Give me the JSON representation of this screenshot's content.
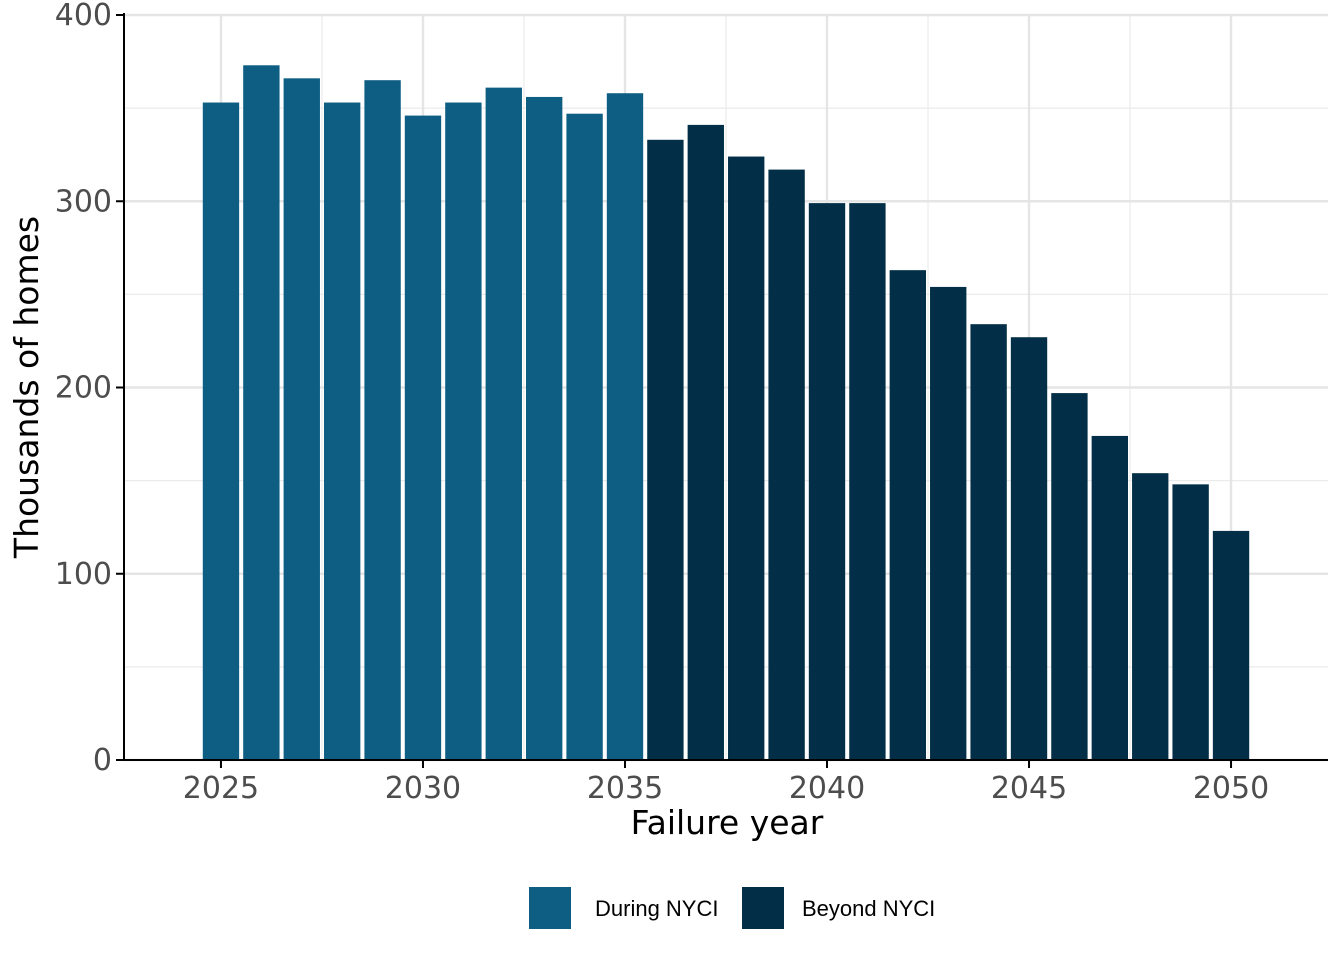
{
  "chart_data": {
    "type": "bar",
    "title": "",
    "xlabel": "Failure year",
    "ylabel": "Thousands of homes",
    "ylim": [
      0,
      400
    ],
    "xlim": [
      2022.6,
      2052.4
    ],
    "y_ticks": [
      0,
      100,
      200,
      300,
      400
    ],
    "y_tick_labels": [
      "0",
      "100",
      "200",
      "300",
      "400"
    ],
    "x_ticks": [
      2025,
      2030,
      2035,
      2040,
      2045,
      2050
    ],
    "x_tick_labels": [
      "2025",
      "2030",
      "2035",
      "2040",
      "2045",
      "2050"
    ],
    "grid": true,
    "legend_position": "bottom",
    "categories": [
      2025,
      2026,
      2027,
      2028,
      2029,
      2030,
      2031,
      2032,
      2033,
      2034,
      2035,
      2036,
      2037,
      2038,
      2039,
      2040,
      2041,
      2042,
      2043,
      2044,
      2045,
      2046,
      2047,
      2048,
      2049,
      2050
    ],
    "series": [
      {
        "name": "During NYCI",
        "color": "#0d5e82",
        "x": [
          2025,
          2026,
          2027,
          2028,
          2029,
          2030,
          2031,
          2032,
          2033,
          2034,
          2035
        ],
        "values": [
          353,
          373,
          366,
          353,
          365,
          346,
          353,
          361,
          356,
          347,
          358
        ]
      },
      {
        "name": "Beyond NYCI",
        "color": "#022f47",
        "x": [
          2036,
          2037,
          2038,
          2039,
          2040,
          2041,
          2042,
          2043,
          2044,
          2045,
          2046,
          2047,
          2048,
          2049,
          2050
        ],
        "values": [
          333,
          341,
          324,
          317,
          299,
          299,
          263,
          254,
          234,
          227,
          197,
          174,
          154,
          148,
          123
        ]
      }
    ]
  }
}
